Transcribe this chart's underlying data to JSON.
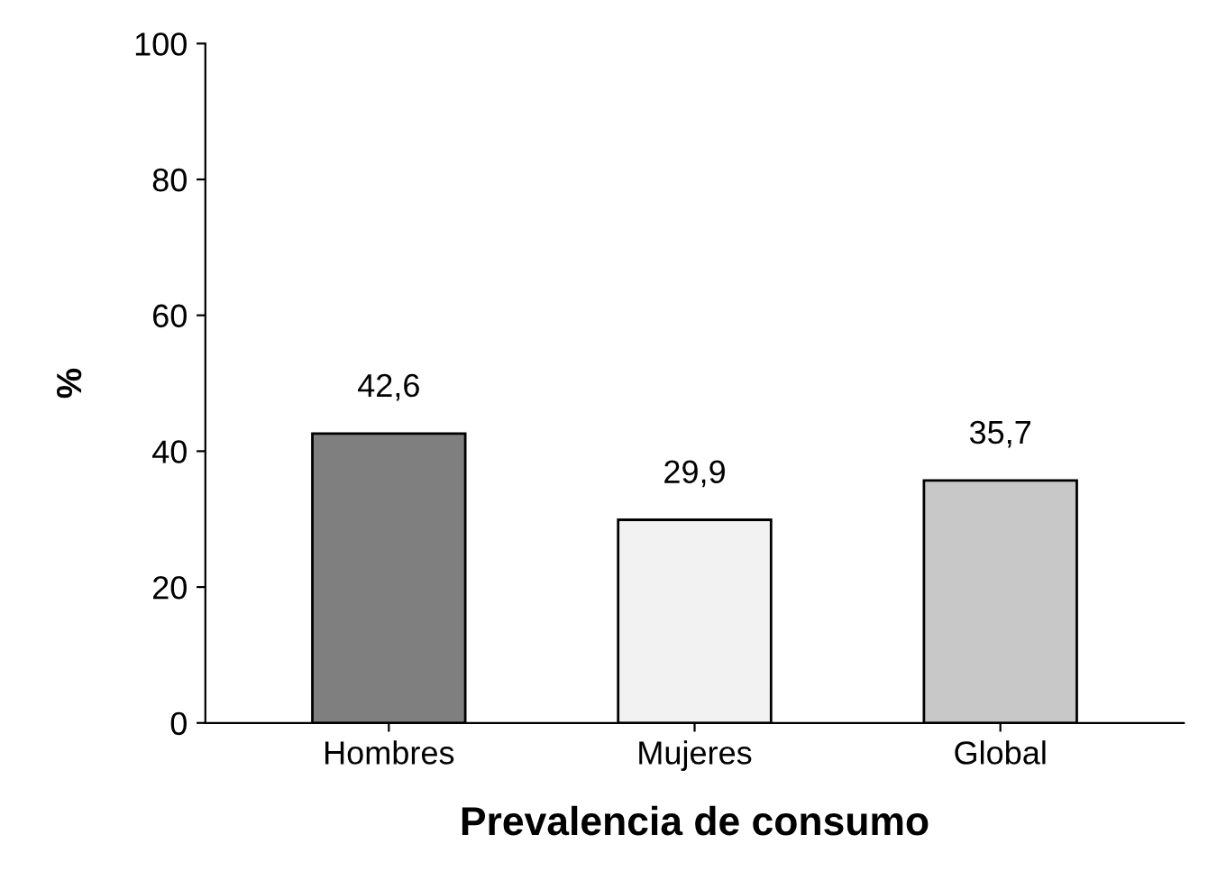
{
  "chart_data": {
    "type": "bar",
    "xlabel": "Prevalencia de consumo",
    "ylabel": "%",
    "categories": [
      "Hombres",
      "Mujeres",
      "Global"
    ],
    "values": [
      42.6,
      29.9,
      35.7
    ],
    "colors": [
      "#7f7f7f",
      "#f2f2f2",
      "#c8c8c8"
    ],
    "value_labels": [
      "42,6",
      "29,9",
      "35,7"
    ],
    "ylim": [
      0,
      100
    ],
    "yticks": [
      0,
      20,
      40,
      60,
      80,
      100
    ],
    "grid": false,
    "legend": false
  }
}
